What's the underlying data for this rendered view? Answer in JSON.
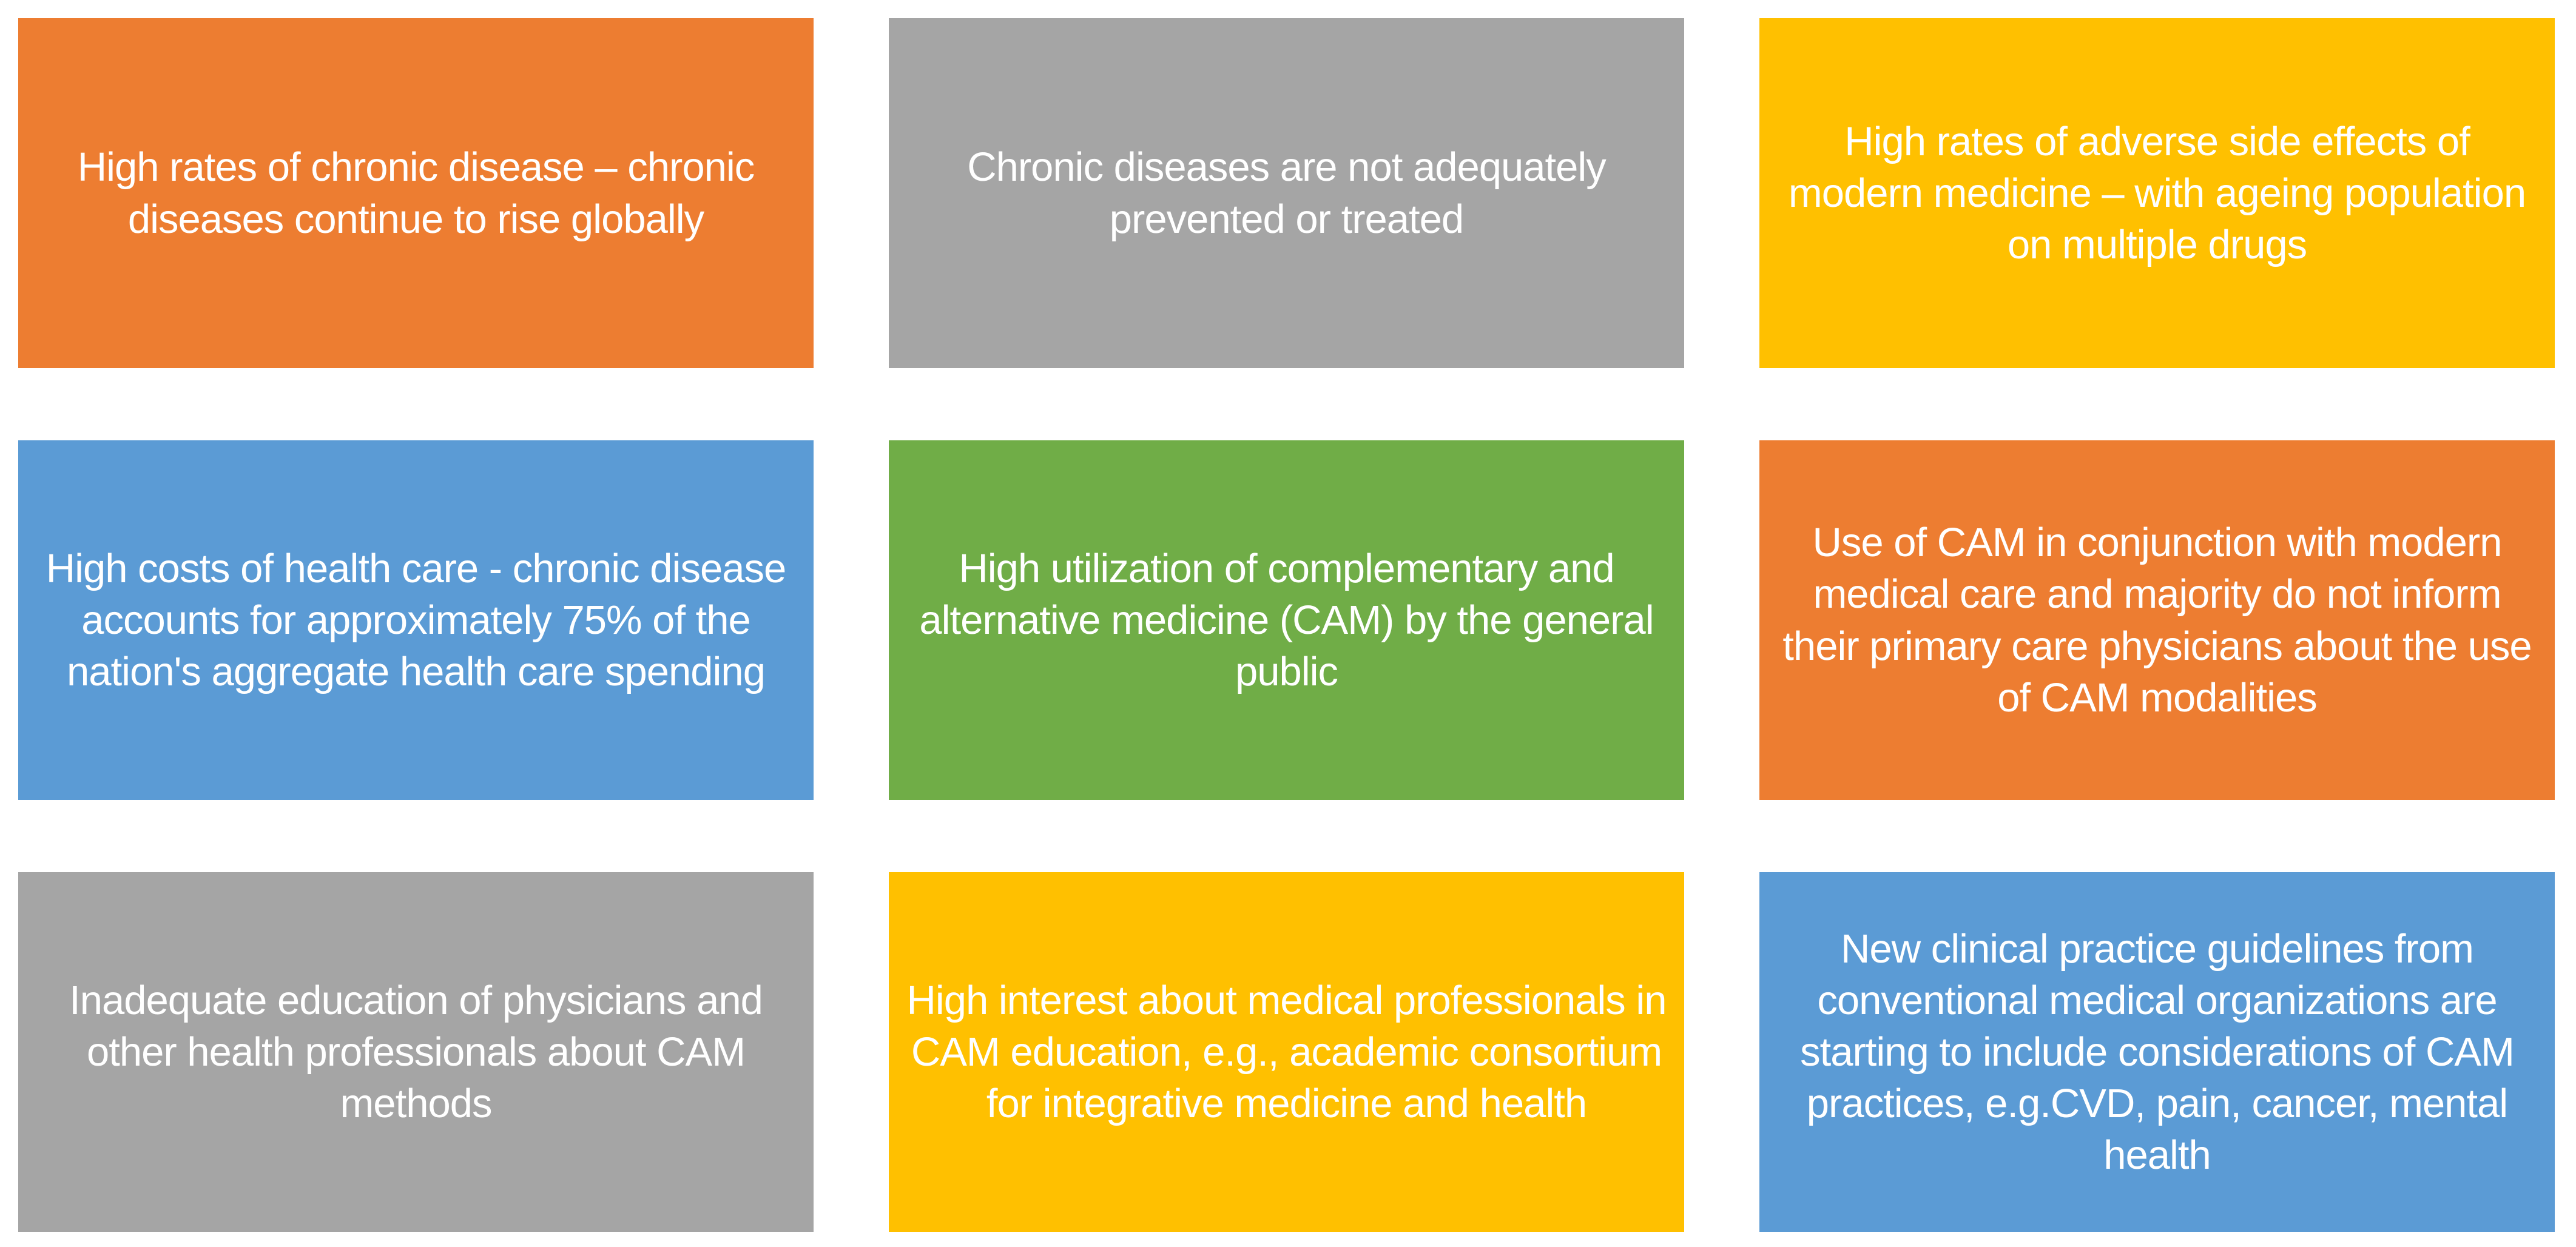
{
  "figure": {
    "background": "#FFFFFF",
    "text_color": "#FFFFFF",
    "boxes": [
      {
        "id": "chronic-disease-rise",
        "color_name": "orange",
        "color": "#ED7D31",
        "text": "High rates of chronic disease – chronic diseases continue to rise globally"
      },
      {
        "id": "diseases-not-prevented",
        "color_name": "gray",
        "color": "#A5A5A5",
        "text": "Chronic diseases are not adequately prevented or treated"
      },
      {
        "id": "adverse-side-effects",
        "color_name": "gold",
        "color": "#FFC000",
        "text": "High rates of adverse side effects of modern medicine – with ageing population on multiple drugs"
      },
      {
        "id": "high-costs-of-health-care",
        "color_name": "blue",
        "color": "#5B9BD5",
        "text": "High costs of health care - chronic disease accounts for approximately 75% of the nation's aggregate health care spending"
      },
      {
        "id": "cam-utilization",
        "color_name": "green",
        "color": "#70AD47",
        "text": "High utilization of complementary and alternative medicine (CAM) by the general public"
      },
      {
        "id": "cam-conjunction-modern-care",
        "color_name": "orange",
        "color": "#ED7D31",
        "text": "Use of CAM in conjunction with modern medical care and majority do not inform their primary care physicians about the use of CAM modalities"
      },
      {
        "id": "inadequate-education",
        "color_name": "gray",
        "color": "#A5A5A5",
        "text": "Inadequate education of physicians and other health professionals about CAM methods"
      },
      {
        "id": "cam-education-interest",
        "color_name": "gold",
        "color": "#FFC000",
        "text": "High interest about medical professionals in CAM education, e.g., academic consortium for integrative medicine and health"
      },
      {
        "id": "clinical-practice-guidelines",
        "color_name": "blue",
        "color": "#5B9BD5",
        "text": "New clinical practice guidelines from conventional medical organizations are starting to include considerations of CAM practices, e.g.CVD,  pain, cancer, mental health"
      }
    ]
  }
}
